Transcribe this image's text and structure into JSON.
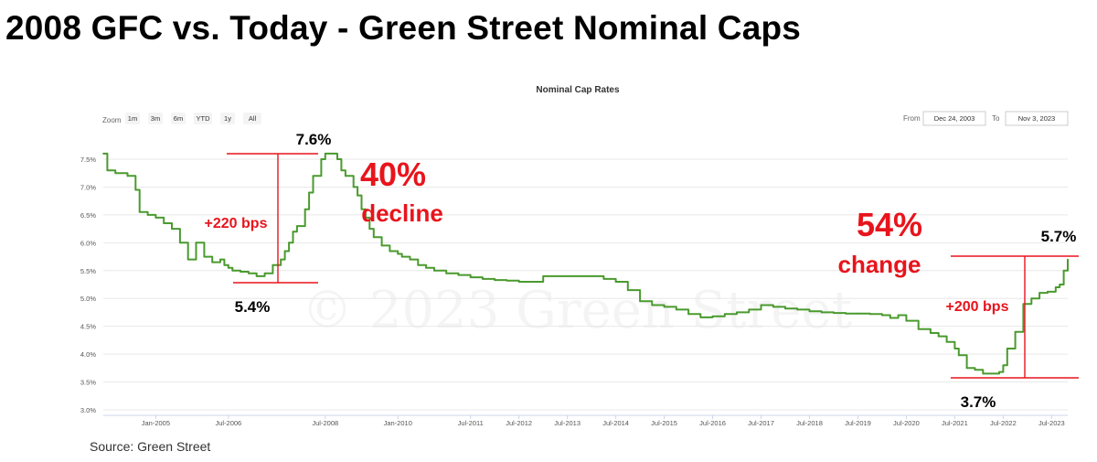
{
  "headline": "2008 GFC vs. Today - Green Street Nominal Caps",
  "source": "Source: Green Street",
  "watermark": "© 2023 Green Street",
  "controls": {
    "zoom_label": "Zoom",
    "zoom_buttons": [
      "1m",
      "3m",
      "6m",
      "YTD",
      "1y",
      "All"
    ],
    "from_label": "From",
    "from_value": "Dec 24, 2003",
    "to_label": "To",
    "to_value": "Nov 3, 2023"
  },
  "colors": {
    "line": "#4a9a2e",
    "annotation": "#e8141c",
    "grid": "#e8e8e8"
  },
  "chart_data": {
    "type": "line",
    "title": "Nominal Cap Rates",
    "xlabel": "",
    "ylabel": "",
    "ylim": [
      3.0,
      7.5
    ],
    "yticks": [
      "3.0%",
      "3.5%",
      "4.0%",
      "4.5%",
      "5.0%",
      "5.5%",
      "6.0%",
      "6.5%",
      "7.0%",
      "7.5%"
    ],
    "xticks": [
      "Jan-2005",
      "Jul-2006",
      "Jul-2008",
      "Jan-2010",
      "Jul-2011",
      "Jul-2012",
      "Jul-2013",
      "Jul-2014",
      "Jul-2015",
      "Jul-2016",
      "Jul-2017",
      "Jul-2018",
      "Jul-2019",
      "Jul-2020",
      "Jul-2021",
      "Jul-2022",
      "Jul-2023"
    ],
    "grid": true,
    "legend": "none",
    "series": [
      {
        "x": [
          "2003-12",
          "2004-01",
          "2004-03",
          "2004-06",
          "2004-08",
          "2004-09",
          "2004-11",
          "2005-01",
          "2005-03",
          "2005-05",
          "2005-07",
          "2005-09",
          "2005-11",
          "2006-01",
          "2006-03",
          "2006-05",
          "2006-06",
          "2006-07",
          "2006-08",
          "2006-09",
          "2006-10",
          "2006-12",
          "2007-02",
          "2007-04",
          "2007-06",
          "2007-08",
          "2007-09",
          "2007-10",
          "2007-11",
          "2007-12",
          "2008-02",
          "2008-03",
          "2008-04",
          "2008-06",
          "2008-07",
          "2008-08",
          "2008-09",
          "2008-10",
          "2008-11",
          "2008-12",
          "2009-02",
          "2009-03",
          "2009-04",
          "2009-05",
          "2009-06",
          "2009-07",
          "2009-09",
          "2009-11",
          "2010-01",
          "2010-02",
          "2010-04",
          "2010-06",
          "2010-08",
          "2010-10",
          "2011-01",
          "2011-04",
          "2011-07",
          "2011-10",
          "2012-01",
          "2012-04",
          "2012-07",
          "2012-10",
          "2013-01",
          "2013-04",
          "2013-07",
          "2013-10",
          "2014-01",
          "2014-04",
          "2014-07",
          "2014-10",
          "2015-01",
          "2015-04",
          "2015-07",
          "2015-10",
          "2016-01",
          "2016-04",
          "2016-07",
          "2016-10",
          "2017-01",
          "2017-04",
          "2017-07",
          "2017-10",
          "2018-01",
          "2018-04",
          "2018-07",
          "2018-10",
          "2019-01",
          "2019-04",
          "2019-07",
          "2019-10",
          "2020-01",
          "2020-03",
          "2020-05",
          "2020-07",
          "2020-10",
          "2021-01",
          "2021-03",
          "2021-05",
          "2021-07",
          "2021-08",
          "2021-10",
          "2021-12",
          "2022-02",
          "2022-04",
          "2022-06",
          "2022-07",
          "2022-08",
          "2022-10",
          "2022-12",
          "2023-02",
          "2023-04",
          "2023-06",
          "2023-08",
          "2023-09",
          "2023-10",
          "2023-11"
        ],
        "y": [
          7.6,
          7.3,
          7.25,
          7.2,
          6.95,
          6.55,
          6.5,
          6.45,
          6.35,
          6.25,
          6.0,
          5.7,
          6.0,
          5.75,
          5.65,
          5.7,
          5.6,
          5.55,
          5.5,
          5.5,
          5.48,
          5.45,
          5.4,
          5.45,
          5.6,
          5.7,
          5.85,
          6.0,
          6.2,
          6.3,
          6.6,
          6.9,
          7.2,
          7.5,
          7.6,
          7.6,
          7.6,
          7.5,
          7.3,
          7.2,
          7.0,
          6.85,
          6.6,
          6.45,
          6.25,
          6.1,
          5.95,
          5.85,
          5.8,
          5.75,
          5.7,
          5.6,
          5.55,
          5.5,
          5.45,
          5.42,
          5.38,
          5.35,
          5.33,
          5.32,
          5.3,
          5.3,
          5.4,
          5.4,
          5.4,
          5.4,
          5.4,
          5.35,
          5.3,
          5.15,
          4.95,
          4.88,
          4.85,
          4.8,
          4.72,
          4.66,
          4.68,
          4.72,
          4.75,
          4.8,
          4.88,
          4.85,
          4.82,
          4.8,
          4.77,
          4.75,
          4.74,
          4.73,
          4.73,
          4.72,
          4.7,
          4.65,
          4.7,
          4.6,
          4.45,
          4.38,
          4.32,
          4.22,
          4.1,
          3.98,
          3.75,
          3.72,
          3.65,
          3.65,
          3.68,
          3.8,
          4.1,
          4.4,
          4.9,
          5.0,
          5.1,
          5.12,
          5.2,
          5.25,
          5.5,
          5.7
        ]
      }
    ],
    "annotations": [
      {
        "text": "7.6%"
      },
      {
        "text": "+220 bps"
      },
      {
        "text": "5.4%"
      },
      {
        "text": "40%"
      },
      {
        "text": "decline"
      },
      {
        "text": "54%"
      },
      {
        "text": "change"
      },
      {
        "text": "5.7%"
      },
      {
        "text": "+200 bps"
      },
      {
        "text": "3.7%"
      }
    ]
  }
}
